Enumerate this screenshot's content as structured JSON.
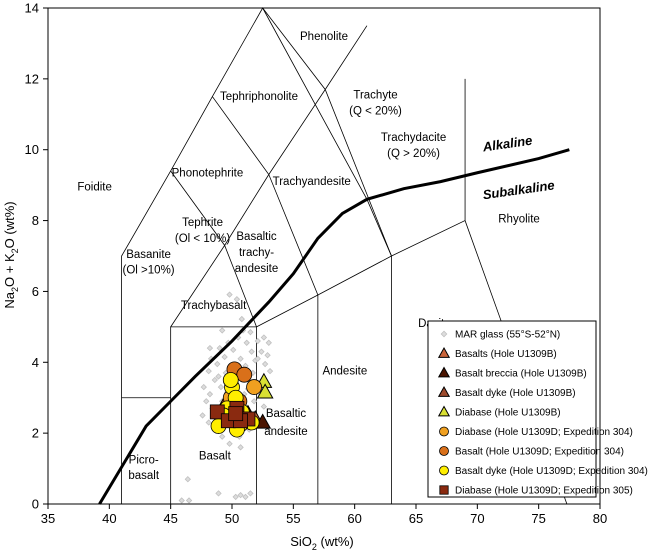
{
  "chart_data": {
    "type": "scatter",
    "title": "",
    "xlabel_parts": [
      "SiO",
      "2",
      " (wt%)"
    ],
    "ylabel_parts": [
      "Na",
      "2",
      "O + K",
      "2",
      "O (wt%)"
    ],
    "xlim": [
      35,
      80
    ],
    "ylim": [
      0,
      14
    ],
    "x_ticks": [
      "35",
      "40",
      "45",
      "50",
      "55",
      "60",
      "65",
      "70",
      "75",
      "80"
    ],
    "y_ticks": [
      "0",
      "2",
      "4",
      "6",
      "8",
      "10",
      "12",
      "14"
    ],
    "tas_boundaries": [
      [
        [
          41,
          0
        ],
        [
          41,
          3
        ],
        [
          45,
          3
        ]
      ],
      [
        [
          45,
          0
        ],
        [
          45,
          5
        ],
        [
          52,
          5
        ],
        [
          52,
          0
        ]
      ],
      [
        [
          57,
          0
        ],
        [
          57,
          5.9
        ]
      ],
      [
        [
          63,
          0
        ],
        [
          63,
          7
        ]
      ],
      [
        [
          52,
          5
        ],
        [
          57,
          5.9
        ],
        [
          63,
          7
        ],
        [
          69,
          8
        ],
        [
          77.3,
          0
        ]
      ],
      [
        [
          41,
          3
        ],
        [
          41,
          7
        ],
        [
          45,
          9.4
        ],
        [
          48.4,
          11.5
        ],
        [
          52.5,
          14
        ],
        [
          61,
          8.6
        ],
        [
          63,
          7
        ]
      ],
      [
        [
          45,
          5
        ],
        [
          49.4,
          7.3
        ],
        [
          53,
          9.3
        ],
        [
          57.6,
          11.7
        ],
        [
          61,
          13.5
        ]
      ],
      [
        [
          52,
          5
        ],
        [
          49.4,
          7.3
        ],
        [
          45,
          9.4
        ]
      ],
      [
        [
          57,
          5.9
        ],
        [
          53,
          9.3
        ],
        [
          48.4,
          11.5
        ]
      ],
      [
        [
          63,
          7
        ],
        [
          57.6,
          11.7
        ],
        [
          52.5,
          14
        ]
      ],
      [
        [
          69,
          8
        ],
        [
          69,
          12
        ]
      ]
    ],
    "alkaline_line": [
      [
        39.2,
        0
      ],
      [
        43,
        2.2
      ],
      [
        45,
        2.9
      ],
      [
        47,
        3.6
      ],
      [
        50,
        4.6
      ],
      [
        53,
        5.7
      ],
      [
        55,
        6.5
      ],
      [
        57,
        7.5
      ],
      [
        59,
        8.2
      ],
      [
        61,
        8.6
      ],
      [
        64,
        8.9
      ],
      [
        67,
        9.1
      ],
      [
        70,
        9.35
      ],
      [
        75,
        9.75
      ],
      [
        77.5,
        10
      ]
    ],
    "field_labels": [
      {
        "text": "Foidite",
        "x": 38.8,
        "y": 8.85
      },
      {
        "text": "Phenolite",
        "x": 57.5,
        "y": 13.1
      },
      {
        "text": "Tephriphonolite",
        "x": 52.2,
        "y": 11.4
      },
      {
        "text": "Phonotephrite",
        "x": 48,
        "y": 9.25
      },
      {
        "text": "Tephrite",
        "x": 47.6,
        "y": 7.85
      },
      {
        "text": "(Ol < 10%)",
        "x": 47.6,
        "y": 7.4
      },
      {
        "text": "Basanite",
        "x": 43.2,
        "y": 6.95
      },
      {
        "text": "(Ol  >10%)",
        "x": 43.2,
        "y": 6.5
      },
      {
        "text": "Trachyandesite",
        "x": 56.5,
        "y": 9.0
      },
      {
        "text": "Basaltic",
        "x": 52,
        "y": 7.45
      },
      {
        "text": "trachy-",
        "x": 52,
        "y": 7.0
      },
      {
        "text": "andesite",
        "x": 52,
        "y": 6.55
      },
      {
        "text": "Trachybasalt",
        "x": 48.5,
        "y": 5.5
      },
      {
        "text": "Trachyte",
        "x": 61.7,
        "y": 11.45
      },
      {
        "text": "(Q < 20%)",
        "x": 61.7,
        "y": 11.0
      },
      {
        "text": "Trachydacite",
        "x": 64.8,
        "y": 10.25
      },
      {
        "text": "(Q > 20%)",
        "x": 64.8,
        "y": 9.8
      },
      {
        "text": "Rhyolite",
        "x": 73.4,
        "y": 7.95
      },
      {
        "text": "Dacite",
        "x": 66.5,
        "y": 5.0
      },
      {
        "text": "Andesite",
        "x": 59.2,
        "y": 3.65
      },
      {
        "text": "Basaltic",
        "x": 54.4,
        "y": 2.45
      },
      {
        "text": "andesite",
        "x": 54.4,
        "y": 1.95
      },
      {
        "text": "Basalt",
        "x": 48.6,
        "y": 1.25
      },
      {
        "text": "Picro-",
        "x": 42.8,
        "y": 1.15
      },
      {
        "text": "basalt",
        "x": 42.8,
        "y": 0.7
      }
    ],
    "line_labels": {
      "alkaline": "Alkaline",
      "subalkaline": "Subalkaline"
    },
    "series": [
      {
        "name": "MAR glass (55°S-52°N)",
        "marker": "diamond",
        "color": "#c0c0c0",
        "points": [
          [
            50.4,
            5.78
          ],
          [
            49.8,
            5.91
          ],
          [
            50.8,
            5.22
          ],
          [
            49.2,
            4.9
          ],
          [
            51.5,
            4.85
          ],
          [
            50.5,
            4.7
          ],
          [
            49.7,
            4.55
          ],
          [
            51.2,
            4.55
          ],
          [
            52.1,
            4.6
          ],
          [
            52.6,
            4.7
          ],
          [
            53,
            4.55
          ],
          [
            49,
            4.4
          ],
          [
            50.1,
            4.35
          ],
          [
            51.6,
            4.3
          ],
          [
            52.4,
            4.3
          ],
          [
            48.3,
            4.1
          ],
          [
            49.4,
            4.15
          ],
          [
            50.7,
            4.1
          ],
          [
            51.9,
            4.05
          ],
          [
            48.8,
            3.95
          ],
          [
            50,
            3.9
          ],
          [
            51.1,
            3.9
          ],
          [
            52.7,
            3.95
          ],
          [
            48.1,
            3.75
          ],
          [
            49.5,
            3.7
          ],
          [
            50.5,
            3.75
          ],
          [
            51.7,
            3.7
          ],
          [
            53.1,
            3.75
          ],
          [
            48.6,
            3.5
          ],
          [
            49.9,
            3.55
          ],
          [
            51.4,
            3.5
          ],
          [
            52.5,
            3.5
          ],
          [
            47.7,
            3.3
          ],
          [
            49.1,
            3.3
          ],
          [
            50.4,
            3.3
          ],
          [
            51.9,
            3.3
          ],
          [
            48.2,
            3.1
          ],
          [
            49.6,
            3.15
          ],
          [
            51,
            3.1
          ],
          [
            52.3,
            3.1
          ],
          [
            47.9,
            2.9
          ],
          [
            49.2,
            2.9
          ],
          [
            50.6,
            2.95
          ],
          [
            51.8,
            2.9
          ],
          [
            48.4,
            2.7
          ],
          [
            49.8,
            2.7
          ],
          [
            51.2,
            2.7
          ],
          [
            52.6,
            2.75
          ],
          [
            47.6,
            2.5
          ],
          [
            49,
            2.5
          ],
          [
            50.3,
            2.5
          ],
          [
            51.6,
            2.5
          ],
          [
            48.1,
            2.3
          ],
          [
            49.5,
            2.3
          ],
          [
            50.9,
            2.3
          ],
          [
            52.2,
            2.35
          ],
          [
            48.6,
            2.1
          ],
          [
            50,
            2.1
          ],
          [
            51.4,
            2.1
          ],
          [
            49.2,
            1.9
          ],
          [
            50.6,
            1.9
          ],
          [
            49.8,
            1.7
          ],
          [
            50.7,
            1.6
          ],
          [
            48.2,
            4.4
          ],
          [
            46.4,
            0.7
          ],
          [
            45.9,
            0.1
          ],
          [
            46.5,
            0.1
          ],
          [
            50.3,
            0.2
          ],
          [
            50.7,
            0.25
          ],
          [
            51.1,
            0.2
          ],
          [
            51.5,
            0.3
          ],
          [
            48.9,
            0.3
          ],
          [
            52.1,
            4.1
          ],
          [
            48.9,
            3.6
          ],
          [
            51.3,
            3.25
          ],
          [
            50.2,
            3.85
          ],
          [
            49.4,
            2.6
          ],
          [
            51.7,
            2.2
          ],
          [
            52.9,
            4.2
          ],
          [
            50.9,
            4.9
          ]
        ]
      },
      {
        "name": "Basalts (Hole U1309B)",
        "marker": "triangle",
        "color": "#c9643a",
        "points": [
          [
            49.3,
            2.75
          ],
          [
            51.9,
            2.4
          ]
        ]
      },
      {
        "name": "Basalt breccia (Hole U1309B)",
        "marker": "triangle",
        "color": "#4a1400",
        "points": [
          [
            52.5,
            2.3
          ],
          [
            51.3,
            2.55
          ]
        ]
      },
      {
        "name": "Basalt dyke  (Hole U1309B)",
        "marker": "triangle",
        "color": "#9c4a2c",
        "points": [
          [
            50.7,
            2.65
          ]
        ]
      },
      {
        "name": "Diabase (Hole U1309B)",
        "marker": "triangle",
        "color": "#d9e033",
        "points": [
          [
            52.6,
            3.45
          ],
          [
            52.7,
            3.15
          ]
        ]
      },
      {
        "name": "Diabase (Hole U1309D; Expedition 304)",
        "marker": "circle",
        "color": "#f0a020",
        "points": [
          [
            51.8,
            3.3
          ],
          [
            49.9,
            3.0
          ]
        ]
      },
      {
        "name": "Basalt (Hole U1309D; Expedition 304)",
        "marker": "circle",
        "color": "#d9701a",
        "points": [
          [
            50.2,
            3.8
          ],
          [
            51,
            3.65
          ],
          [
            50.6,
            2.9
          ]
        ]
      },
      {
        "name": "Basalt dyke (Hole U1309D; Expedition 304)",
        "marker": "circle",
        "color": "#ffee00",
        "points": [
          [
            50,
            3.3
          ],
          [
            50.3,
            3.0
          ],
          [
            50.8,
            2.6
          ],
          [
            49.6,
            2.7
          ],
          [
            50.1,
            2.4
          ],
          [
            49.3,
            2.5
          ],
          [
            50.7,
            2.25
          ],
          [
            48.9,
            2.2
          ],
          [
            51.6,
            2.3
          ],
          [
            50.4,
            2.1
          ],
          [
            49.9,
            3.5
          ]
        ]
      },
      {
        "name": "Diabase (Hole U1309D; Expedition 305)",
        "marker": "square",
        "color": "#8a2a10",
        "points": [
          [
            48.8,
            2.6
          ],
          [
            50.4,
            2.7
          ],
          [
            51.3,
            2.4
          ],
          [
            49.7,
            2.35
          ],
          [
            50.7,
            2.35
          ],
          [
            50.3,
            2.55
          ]
        ]
      }
    ]
  }
}
